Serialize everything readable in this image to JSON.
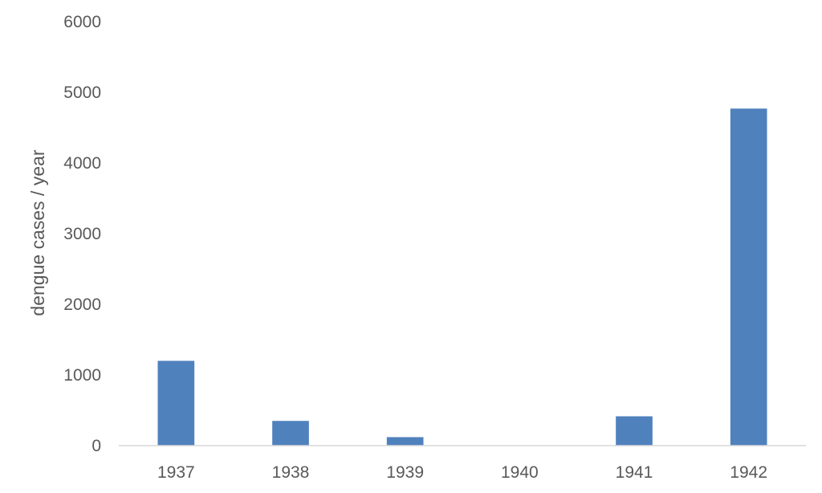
{
  "chart_data": {
    "type": "bar",
    "title": "",
    "xlabel": "",
    "ylabel": "dengue cases / year",
    "categories": [
      "1937",
      "1938",
      "1939",
      "1940",
      "1941",
      "1942"
    ],
    "series": [
      {
        "values": [
          1200,
          350,
          120,
          0,
          415,
          4770
        ],
        "color": "#4f81bd"
      }
    ],
    "ylim": [
      0,
      6000
    ],
    "yticks": [
      0,
      1000,
      2000,
      3000,
      4000,
      5000,
      6000
    ],
    "grid": false,
    "legend": "none",
    "axis_color": "#d9d9d9",
    "text_color": "#595959"
  }
}
